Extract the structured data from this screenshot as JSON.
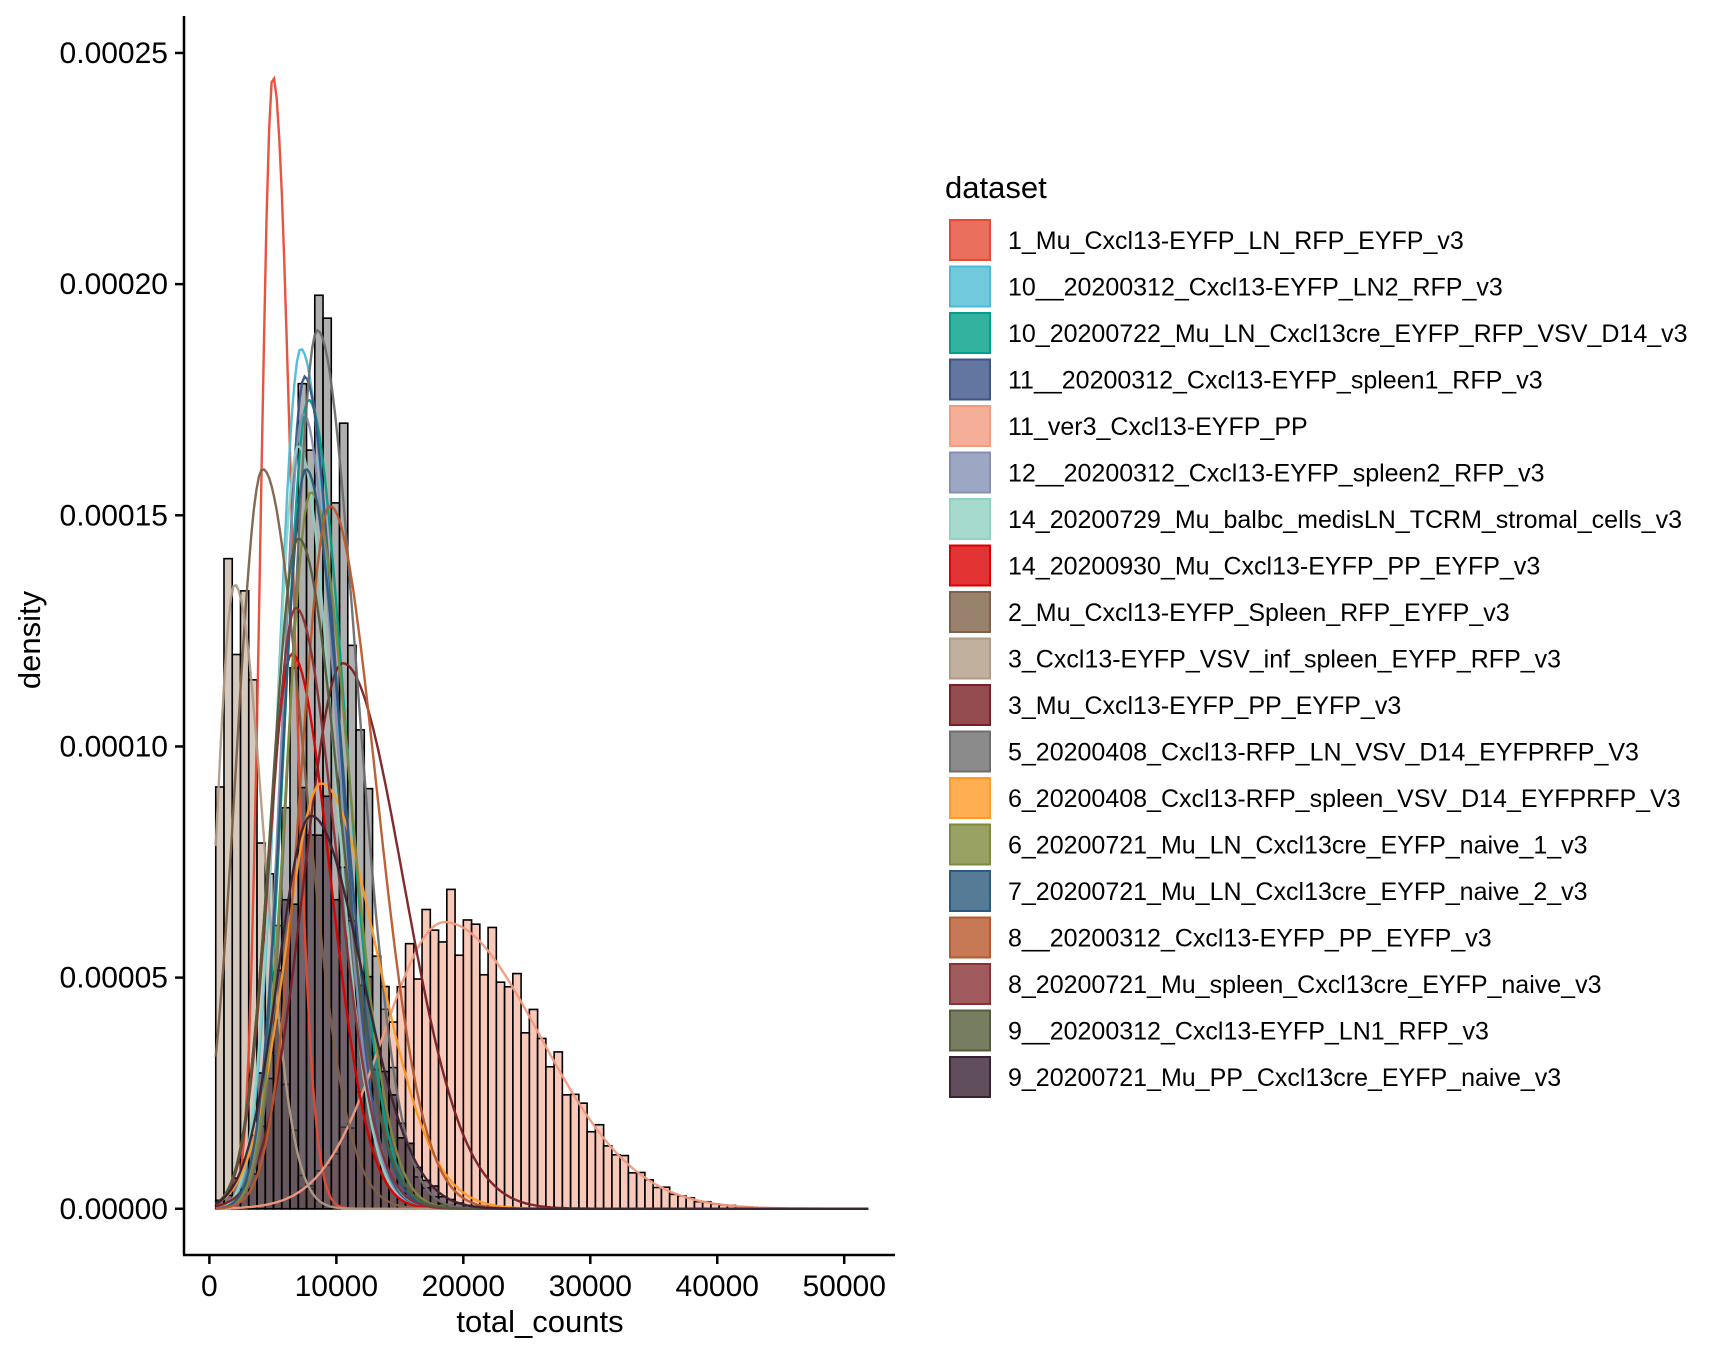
{
  "chart_data": {
    "type": "histogram",
    "title": "",
    "xlabel": "total_counts",
    "ylabel": "density",
    "xlim": [
      -2000,
      54000
    ],
    "ylim": [
      -1e-05,
      0.000258
    ],
    "x_ticks": [
      0,
      10000,
      20000,
      30000,
      40000,
      50000
    ],
    "x_tick_labels": [
      "0",
      "10000",
      "20000",
      "30000",
      "40000",
      "50000"
    ],
    "y_ticks": [
      0,
      5e-05,
      0.0001,
      0.00015,
      0.0002,
      0.00025
    ],
    "y_tick_labels": [
      "0.00000",
      "0.00005",
      "0.00010",
      "0.00015",
      "0.00020",
      "0.00025"
    ],
    "grid": false,
    "legend": {
      "title": "dataset",
      "position": "right"
    },
    "bin_width": 650,
    "series": [
      {
        "name": "1_Mu_Cxcl13-EYFP_LN_RFP_EYFP_v3",
        "color": "#E64B35",
        "mean": 5000,
        "sd": 1200,
        "peak": 0.000245,
        "kde": true
      },
      {
        "name": "10__20200312_Cxcl13-EYFP_LN2_RFP_v3",
        "color": "#4DBBD5",
        "mean": 7200,
        "sd": 2200,
        "peak": 0.000186,
        "kde": true
      },
      {
        "name": "10_20200722_Mu_LN_Cxcl13cre_EYFP_RFP_VSV_D14_v3",
        "color": "#00A087",
        "mean": 7800,
        "sd": 2300,
        "peak": 0.000175,
        "kde": true
      },
      {
        "name": "11__20200312_Cxcl13-EYFP_spleen1_RFP_v3",
        "color": "#3C5488",
        "mean": 7500,
        "sd": 2100,
        "peak": 0.00018,
        "kde": true
      },
      {
        "name": "11_ver3_Cxcl13-EYFP_PP",
        "color": "#F39B7F",
        "mean": 18500,
        "sd": 6000,
        "peak": 6.2e-05,
        "kde": true,
        "histogram": true
      },
      {
        "name": "12__20200312_Cxcl13-EYFP_spleen2_RFP_v3",
        "color": "#8491B4",
        "mean": 7400,
        "sd": 2100,
        "peak": 0.000172,
        "kde": true
      },
      {
        "name": "14_20200729_Mu_balbc_medisLN_TCRM_stromal_cells_v3",
        "color": "#91D1C2",
        "mean": 7000,
        "sd": 2200,
        "peak": 0.000165,
        "kde": true
      },
      {
        "name": "14_20200930_Mu_Cxcl13-EYFP_PP_EYFP_v3",
        "color": "#DC0000",
        "mean": 6500,
        "sd": 2400,
        "peak": 0.00012,
        "kde": true
      },
      {
        "name": "2_Mu_Cxcl13-EYFP_Spleen_RFP_EYFP_v3",
        "color": "#7E6148",
        "mean": 4200,
        "sd": 2600,
        "peak": 0.00016,
        "kde": true
      },
      {
        "name": "3_Cxcl13-EYFP_VSV_inf_spleen_EYFP_RFP_v3",
        "color": "#B09C85",
        "mean": 2000,
        "sd": 1800,
        "peak": 0.000135,
        "kde": true,
        "histogram": true
      },
      {
        "name": "3_Mu_Cxcl13-EYFP_PP_EYFP_v3",
        "color": "#7A1F24",
        "mean": 10500,
        "sd": 3800,
        "peak": 0.000118,
        "kde": true
      },
      {
        "name": "5_20200408_Cxcl13-RFP_LN_VSV_D14_EYFPRFP_V3",
        "color": "#6E6E6E",
        "mean": 8500,
        "sd": 2500,
        "peak": 0.00019,
        "kde": true,
        "histogram": true
      },
      {
        "name": "6_20200408_Cxcl13-RFP_spleen_VSV_D14_EYFPRFP_V3",
        "color": "#FF9A26",
        "mean": 8800,
        "sd": 3500,
        "peak": 9.2e-05,
        "kde": true
      },
      {
        "name": "6_20200721_Mu_LN_Cxcl13cre_EYFP_naive_1_v3",
        "color": "#808A3C",
        "mean": 8000,
        "sd": 2400,
        "peak": 0.000155,
        "kde": true
      },
      {
        "name": "7_20200721_Mu_LN_Cxcl13cre_EYFP_naive_2_v3",
        "color": "#2C5A7C",
        "mean": 7600,
        "sd": 2300,
        "peak": 0.00016,
        "kde": true
      },
      {
        "name": "8__20200312_Cxcl13-EYFP_PP_EYFP_v3",
        "color": "#B9582C",
        "mean": 9500,
        "sd": 2900,
        "peak": 0.000152,
        "kde": true
      },
      {
        "name": "8_20200721_Mu_spleen_Cxcl13cre_EYFP_naive_v3",
        "color": "#8A3236",
        "mean": 6800,
        "sd": 2500,
        "peak": 0.00013,
        "kde": true
      },
      {
        "name": "9__20200312_Cxcl13-EYFP_LN1_RFP_v3",
        "color": "#545C3A",
        "mean": 7000,
        "sd": 2600,
        "peak": 0.000145,
        "kde": true
      },
      {
        "name": "9_20200721_Mu_PP_Cxcl13cre_EYFP_naive_v3",
        "color": "#3A2233",
        "mean": 8000,
        "sd": 3200,
        "peak": 8.5e-05,
        "kde": true,
        "histogram": true
      }
    ]
  }
}
